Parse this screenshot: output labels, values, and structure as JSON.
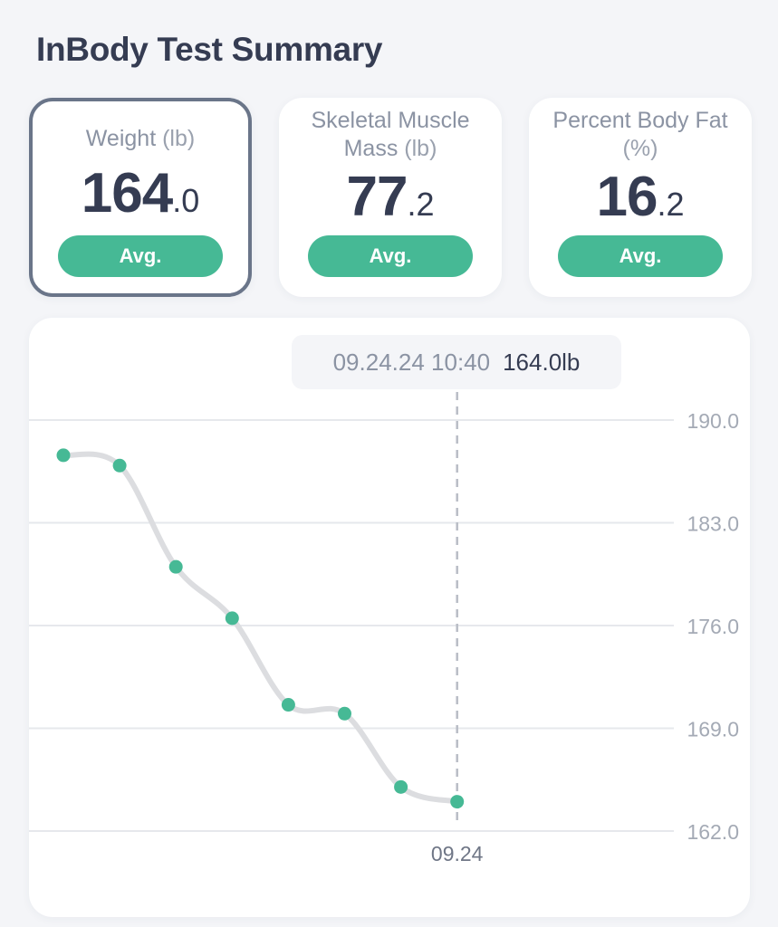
{
  "header": {
    "title": "InBody Test Summary"
  },
  "cards": [
    {
      "label": "Weight",
      "unit": "(lb)",
      "value_int": "164",
      "value_dec": ".0",
      "button": "Avg."
    },
    {
      "label": "Skeletal Muscle Mass",
      "unit": "(lb)",
      "value_int": "77",
      "value_dec": ".2",
      "button": "Avg."
    },
    {
      "label": "Percent Body Fat",
      "unit": "(%)",
      "value_int": "16",
      "value_dec": ".2",
      "button": "Avg."
    }
  ],
  "tooltip": {
    "date": "09.24.24 10:40",
    "value": "164.0lb"
  },
  "chart_data": {
    "type": "line",
    "title": "",
    "xlabel": "",
    "ylabel": "",
    "x_tick_labels": [
      "09.24"
    ],
    "y_ticks": [
      "190.0",
      "183.0",
      "176.0",
      "169.0",
      "162.0"
    ],
    "ylim": [
      162.0,
      190.0
    ],
    "y_axis_side": "right",
    "grid": true,
    "line_color": "#dcdde0",
    "marker_color": "#46b995",
    "selected_index": 7,
    "series": [
      {
        "values": [
          187.6,
          186.9,
          180.0,
          176.5,
          170.6,
          170.0,
          165.0,
          164.0
        ]
      }
    ]
  }
}
